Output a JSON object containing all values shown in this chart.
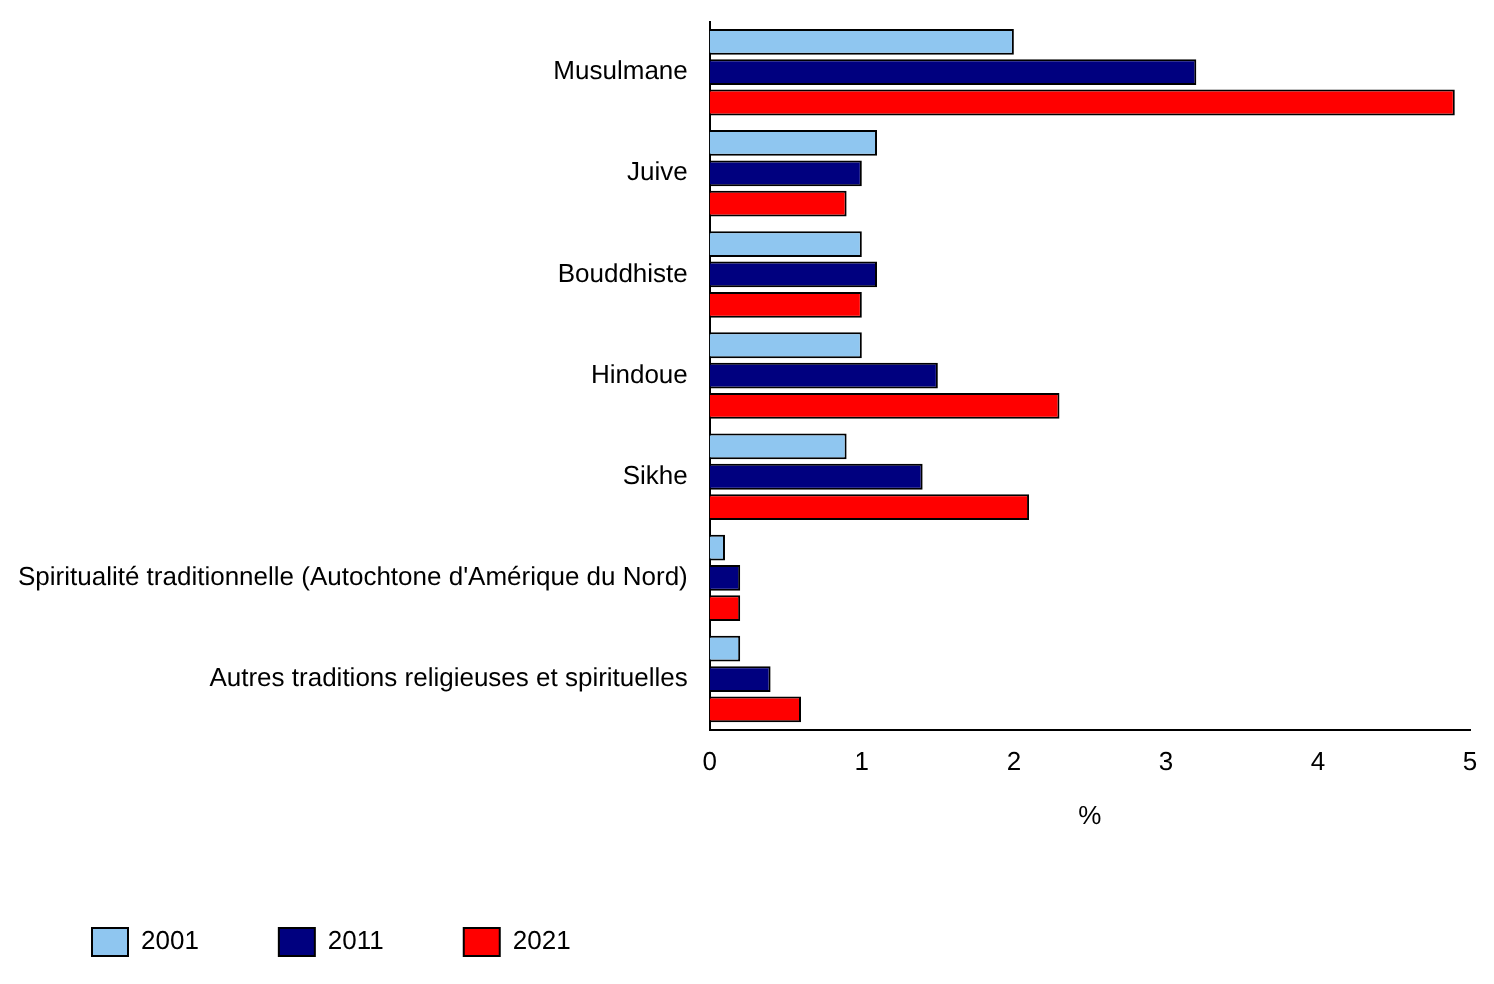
{
  "chart_data": {
    "type": "bar",
    "orientation": "horizontal",
    "xlabel": "%",
    "categories": [
      "Musulmane",
      "Juive",
      "Bouddhiste",
      "Hindoue",
      "Sikhe",
      "Spiritualité traditionnelle (Autochtone d'Amérique du Nord)",
      "Autres traditions religieuses et spirituelles"
    ],
    "series": [
      {
        "name": "2001",
        "color": "#8fc6f0",
        "values": [
          2.0,
          1.1,
          1.0,
          1.0,
          0.9,
          0.1,
          0.2
        ]
      },
      {
        "name": "2011",
        "color": "#00007f",
        "values": [
          3.2,
          1.0,
          1.1,
          1.5,
          1.4,
          0.2,
          0.4
        ]
      },
      {
        "name": "2021",
        "color": "#ff0000",
        "values": [
          4.9,
          0.9,
          1.0,
          2.3,
          2.1,
          0.2,
          0.6
        ]
      }
    ],
    "xlim": [
      0,
      5
    ],
    "xticks": [
      0,
      1,
      2,
      3,
      4,
      5
    ],
    "grid": false,
    "legend": "bottom"
  }
}
